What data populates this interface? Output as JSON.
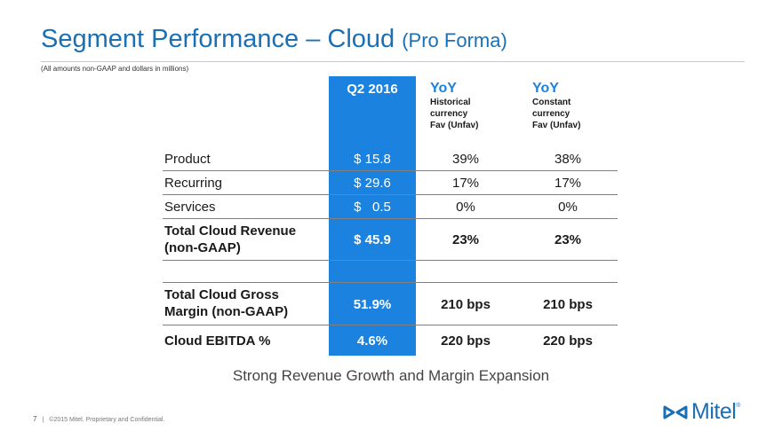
{
  "slide": {
    "title": "Segment Performance – Cloud",
    "title_suffix": "(Pro Forma)",
    "note": "(All amounts non-GAAP and dollars in millions)",
    "tagline": "Strong Revenue Growth and Margin Expansion"
  },
  "table": {
    "headers": {
      "q": "Q2 2016",
      "yoy1": {
        "main": "YoY",
        "l1": "Historical",
        "l2": "currency",
        "l3": "Fav (Unfav)"
      },
      "yoy2": {
        "main": "YoY",
        "l1": "Constant",
        "l2": "currency",
        "l3": "Fav (Unfav)"
      }
    },
    "rows": [
      {
        "label": "Product",
        "q": "$ 15.8",
        "y1": "39%",
        "y2": "38%"
      },
      {
        "label": "Recurring",
        "q": "$ 29.6",
        "y1": "17%",
        "y2": "17%"
      },
      {
        "label": "Services",
        "q": "$   0.5",
        "y1": "0%",
        "y2": "0%"
      },
      {
        "label_l1": "Total Cloud Revenue",
        "label_l2": "(non-GAAP)",
        "q": "$ 45.9",
        "y1": "23%",
        "y2": "23%"
      },
      {
        "label_l1": "Total Cloud Gross",
        "label_l2": "Margin (non-GAAP)",
        "q": "51.9%",
        "y1": "210 bps",
        "y2": "210 bps"
      },
      {
        "label": "Cloud EBITDA %",
        "q": "4.6%",
        "y1": "220 bps",
        "y2": "220 bps"
      }
    ]
  },
  "footer": {
    "page": "7",
    "separator": "|",
    "copyright": "©2015 Mitel. Proprietary and Confidential."
  },
  "brand": {
    "logo_word": "Mitel",
    "logo_reg": "®",
    "logo_icon": "mitel-infinity-icon",
    "accent": "#1b6fb3",
    "column": "#1b82e0"
  }
}
